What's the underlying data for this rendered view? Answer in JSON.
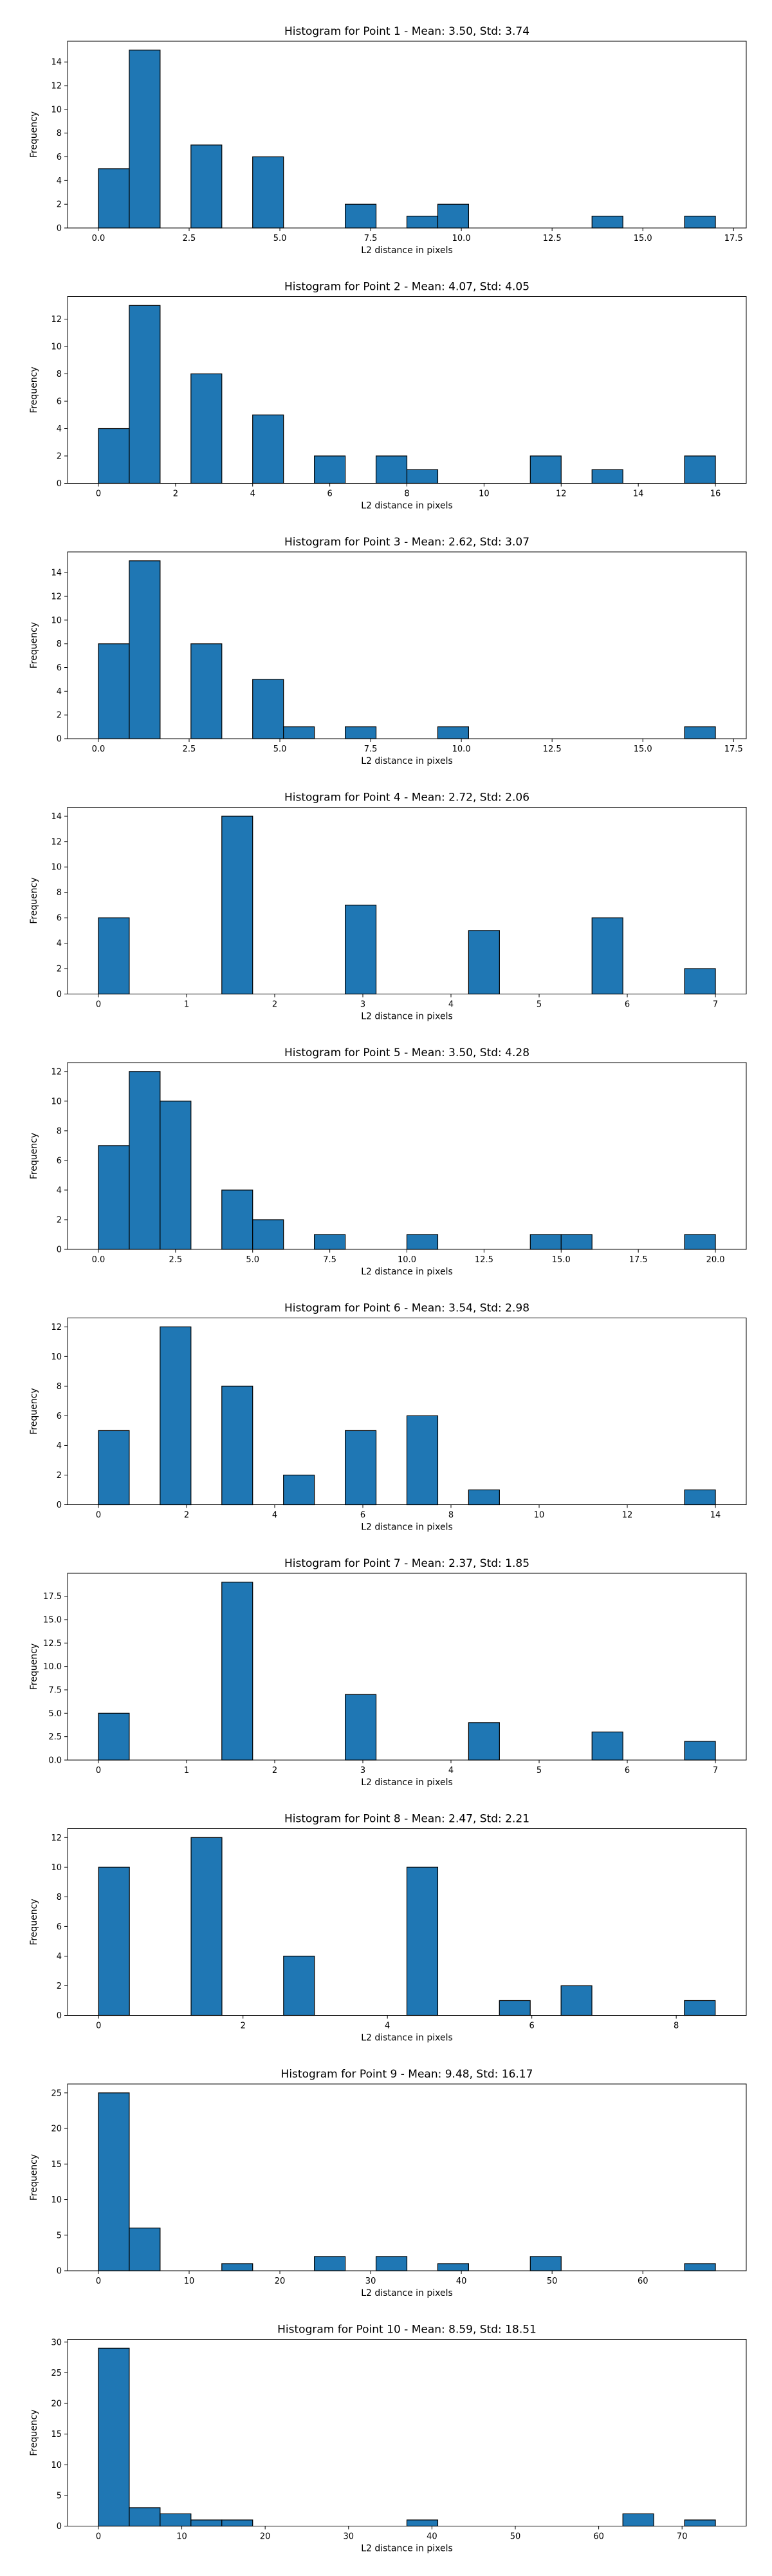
{
  "figure": {
    "bar_color": "#1f77b4",
    "edge_color": "#000000",
    "background": "#ffffff"
  },
  "chart_data": [
    {
      "type": "bar",
      "title": "Histogram for Point 1 - Mean: 3.50, Std: 3.74",
      "xlabel": "L2 distance in pixels",
      "ylabel": "Frequency",
      "xlim": [
        -0.85,
        17.85
      ],
      "ylim": [
        0,
        15.75
      ],
      "xticks": [
        0,
        2.5,
        5,
        7.5,
        10,
        12.5,
        15,
        17.5
      ],
      "xtick_labels": [
        "0.0",
        "2.5",
        "5.0",
        "7.5",
        "10.0",
        "12.5",
        "15.0",
        "17.5"
      ],
      "yticks": [
        0,
        2,
        4,
        6,
        8,
        10,
        12,
        14
      ],
      "ytick_labels": [
        "0",
        "2",
        "4",
        "6",
        "8",
        "10",
        "12",
        "14"
      ],
      "bins": {
        "start": 0,
        "width": 0.85
      },
      "values": [
        5,
        15,
        0,
        7,
        0,
        6,
        0,
        0,
        2,
        0,
        1,
        2,
        0,
        0,
        0,
        0,
        1,
        0,
        0,
        1
      ]
    },
    {
      "type": "bar",
      "title": "Histogram for Point 2 - Mean: 4.07, Std: 4.05",
      "xlabel": "L2 distance in pixels",
      "ylabel": "Frequency",
      "xlim": [
        -0.8,
        16.8
      ],
      "ylim": [
        0,
        13.65
      ],
      "xticks": [
        0,
        2,
        4,
        6,
        8,
        10,
        12,
        14,
        16
      ],
      "xtick_labels": [
        "0",
        "2",
        "4",
        "6",
        "8",
        "10",
        "12",
        "14",
        "16"
      ],
      "yticks": [
        0,
        2,
        4,
        6,
        8,
        10,
        12
      ],
      "ytick_labels": [
        "0",
        "2",
        "4",
        "6",
        "8",
        "10",
        "12"
      ],
      "bins": {
        "start": 0,
        "width": 0.8
      },
      "values": [
        4,
        13,
        0,
        8,
        0,
        5,
        0,
        2,
        0,
        2,
        1,
        0,
        0,
        0,
        2,
        0,
        1,
        0,
        0,
        2
      ]
    },
    {
      "type": "bar",
      "title": "Histogram for Point 3 - Mean: 2.62, Std: 3.07",
      "xlabel": "L2 distance in pixels",
      "ylabel": "Frequency",
      "xlim": [
        -0.85,
        17.85
      ],
      "ylim": [
        0,
        15.75
      ],
      "xticks": [
        0,
        2.5,
        5,
        7.5,
        10,
        12.5,
        15,
        17.5
      ],
      "xtick_labels": [
        "0.0",
        "2.5",
        "5.0",
        "7.5",
        "10.0",
        "12.5",
        "15.0",
        "17.5"
      ],
      "yticks": [
        0,
        2,
        4,
        6,
        8,
        10,
        12,
        14
      ],
      "ytick_labels": [
        "0",
        "2",
        "4",
        "6",
        "8",
        "10",
        "12",
        "14"
      ],
      "bins": {
        "start": 0,
        "width": 0.85
      },
      "values": [
        8,
        15,
        0,
        8,
        0,
        5,
        1,
        0,
        1,
        0,
        0,
        1,
        0,
        0,
        0,
        0,
        0,
        0,
        0,
        1
      ]
    },
    {
      "type": "bar",
      "title": "Histogram for Point 4 - Mean: 2.72, Std: 2.06",
      "xlabel": "L2 distance in pixels",
      "ylabel": "Frequency",
      "xlim": [
        -0.35,
        7.35
      ],
      "ylim": [
        0,
        14.7
      ],
      "xticks": [
        0,
        1,
        2,
        3,
        4,
        5,
        6,
        7
      ],
      "xtick_labels": [
        "0",
        "1",
        "2",
        "3",
        "4",
        "5",
        "6",
        "7"
      ],
      "yticks": [
        0,
        2,
        4,
        6,
        8,
        10,
        12,
        14
      ],
      "ytick_labels": [
        "0",
        "2",
        "4",
        "6",
        "8",
        "10",
        "12",
        "14"
      ],
      "bins": {
        "start": 0,
        "width": 0.35
      },
      "values": [
        6,
        0,
        0,
        0,
        14,
        0,
        0,
        0,
        7,
        0,
        0,
        0,
        5,
        0,
        0,
        0,
        6,
        0,
        0,
        2
      ]
    },
    {
      "type": "bar",
      "title": "Histogram for Point 5 - Mean: 3.50, Std: 4.28",
      "xlabel": "L2 distance in pixels",
      "ylabel": "Frequency",
      "xlim": [
        -1.0,
        21.0
      ],
      "ylim": [
        0,
        12.6
      ],
      "xticks": [
        0,
        2.5,
        5,
        7.5,
        10,
        12.5,
        15,
        17.5,
        20
      ],
      "xtick_labels": [
        "0.0",
        "2.5",
        "5.0",
        "7.5",
        "10.0",
        "12.5",
        "15.0",
        "17.5",
        "20.0"
      ],
      "yticks": [
        0,
        2,
        4,
        6,
        8,
        10,
        12
      ],
      "ytick_labels": [
        "0",
        "2",
        "4",
        "6",
        "8",
        "10",
        "12"
      ],
      "bins": {
        "start": 0,
        "width": 1.0
      },
      "values": [
        7,
        12,
        10,
        0,
        4,
        2,
        0,
        1,
        0,
        0,
        1,
        0,
        0,
        0,
        1,
        1,
        0,
        0,
        0,
        1
      ]
    },
    {
      "type": "bar",
      "title": "Histogram for Point 6 - Mean: 3.54, Std: 2.98",
      "xlabel": "L2 distance in pixels",
      "ylabel": "Frequency",
      "xlim": [
        -0.7,
        14.7
      ],
      "ylim": [
        0,
        12.6
      ],
      "xticks": [
        0,
        2,
        4,
        6,
        8,
        10,
        12,
        14
      ],
      "xtick_labels": [
        "0",
        "2",
        "4",
        "6",
        "8",
        "10",
        "12",
        "14"
      ],
      "yticks": [
        0,
        2,
        4,
        6,
        8,
        10,
        12
      ],
      "ytick_labels": [
        "0",
        "2",
        "4",
        "6",
        "8",
        "10",
        "12"
      ],
      "bins": {
        "start": 0,
        "width": 0.7
      },
      "values": [
        5,
        0,
        12,
        0,
        8,
        0,
        2,
        0,
        5,
        0,
        6,
        0,
        1,
        0,
        0,
        0,
        0,
        0,
        0,
        1
      ]
    },
    {
      "type": "bar",
      "title": "Histogram for Point 7 - Mean: 2.37, Std: 1.85",
      "xlabel": "L2 distance in pixels",
      "ylabel": "Frequency",
      "xlim": [
        -0.35,
        7.35
      ],
      "ylim": [
        0,
        19.95
      ],
      "xticks": [
        0,
        1,
        2,
        3,
        4,
        5,
        6,
        7
      ],
      "xtick_labels": [
        "0",
        "1",
        "2",
        "3",
        "4",
        "5",
        "6",
        "7"
      ],
      "yticks": [
        0,
        2.5,
        5,
        7.5,
        10,
        12.5,
        15,
        17.5
      ],
      "ytick_labels": [
        "0.0",
        "2.5",
        "5.0",
        "7.5",
        "10.0",
        "12.5",
        "15.0",
        "17.5"
      ],
      "bins": {
        "start": 0,
        "width": 0.35
      },
      "values": [
        5,
        0,
        0,
        0,
        19,
        0,
        0,
        0,
        7,
        0,
        0,
        0,
        4,
        0,
        0,
        0,
        3,
        0,
        0,
        2
      ]
    },
    {
      "type": "bar",
      "title": "Histogram for Point 8 - Mean: 2.47, Std: 2.21",
      "xlabel": "L2 distance in pixels",
      "ylabel": "Frequency",
      "xlim": [
        -0.43,
        8.97
      ],
      "ylim": [
        0,
        12.6
      ],
      "xticks": [
        0,
        2,
        4,
        6,
        8
      ],
      "xtick_labels": [
        "0",
        "2",
        "4",
        "6",
        "8"
      ],
      "yticks": [
        0,
        2,
        4,
        6,
        8,
        10,
        12
      ],
      "ytick_labels": [
        "0",
        "2",
        "4",
        "6",
        "8",
        "10",
        "12"
      ],
      "bins": {
        "start": 0,
        "width": 0.427
      },
      "values": [
        10,
        0,
        0,
        12,
        0,
        0,
        4,
        0,
        0,
        0,
        10,
        0,
        0,
        1,
        0,
        2,
        0,
        0,
        0,
        1
      ]
    },
    {
      "type": "bar",
      "title": "Histogram for Point 9 - Mean: 9.48, Std: 16.17",
      "xlabel": "L2 distance in pixels",
      "ylabel": "Frequency",
      "xlim": [
        -3.4,
        71.4
      ],
      "ylim": [
        0,
        26.25
      ],
      "xticks": [
        0,
        10,
        20,
        30,
        40,
        50,
        60
      ],
      "xtick_labels": [
        "0",
        "10",
        "20",
        "30",
        "40",
        "50",
        "60"
      ],
      "yticks": [
        0,
        5,
        10,
        15,
        20,
        25
      ],
      "ytick_labels": [
        "0",
        "5",
        "10",
        "15",
        "20",
        "25"
      ],
      "bins": {
        "start": 0,
        "width": 3.4
      },
      "values": [
        25,
        6,
        0,
        0,
        1,
        0,
        0,
        2,
        0,
        2,
        0,
        1,
        0,
        0,
        2,
        0,
        0,
        0,
        0,
        1
      ]
    },
    {
      "type": "bar",
      "title": "Histogram for Point 10 - Mean: 8.59, Std: 18.51",
      "xlabel": "L2 distance in pixels",
      "ylabel": "Frequency",
      "xlim": [
        -3.7,
        77.7
      ],
      "ylim": [
        0,
        30.45
      ],
      "xticks": [
        0,
        10,
        20,
        30,
        40,
        50,
        60,
        70
      ],
      "xtick_labels": [
        "0",
        "10",
        "20",
        "30",
        "40",
        "50",
        "60",
        "70"
      ],
      "yticks": [
        0,
        5,
        10,
        15,
        20,
        25,
        30
      ],
      "ytick_labels": [
        "0",
        "5",
        "10",
        "15",
        "20",
        "25",
        "30"
      ],
      "bins": {
        "start": 0,
        "width": 3.7
      },
      "values": [
        29,
        3,
        2,
        1,
        1,
        0,
        0,
        0,
        0,
        0,
        1,
        0,
        0,
        0,
        0,
        0,
        0,
        2,
        0,
        1
      ]
    }
  ]
}
